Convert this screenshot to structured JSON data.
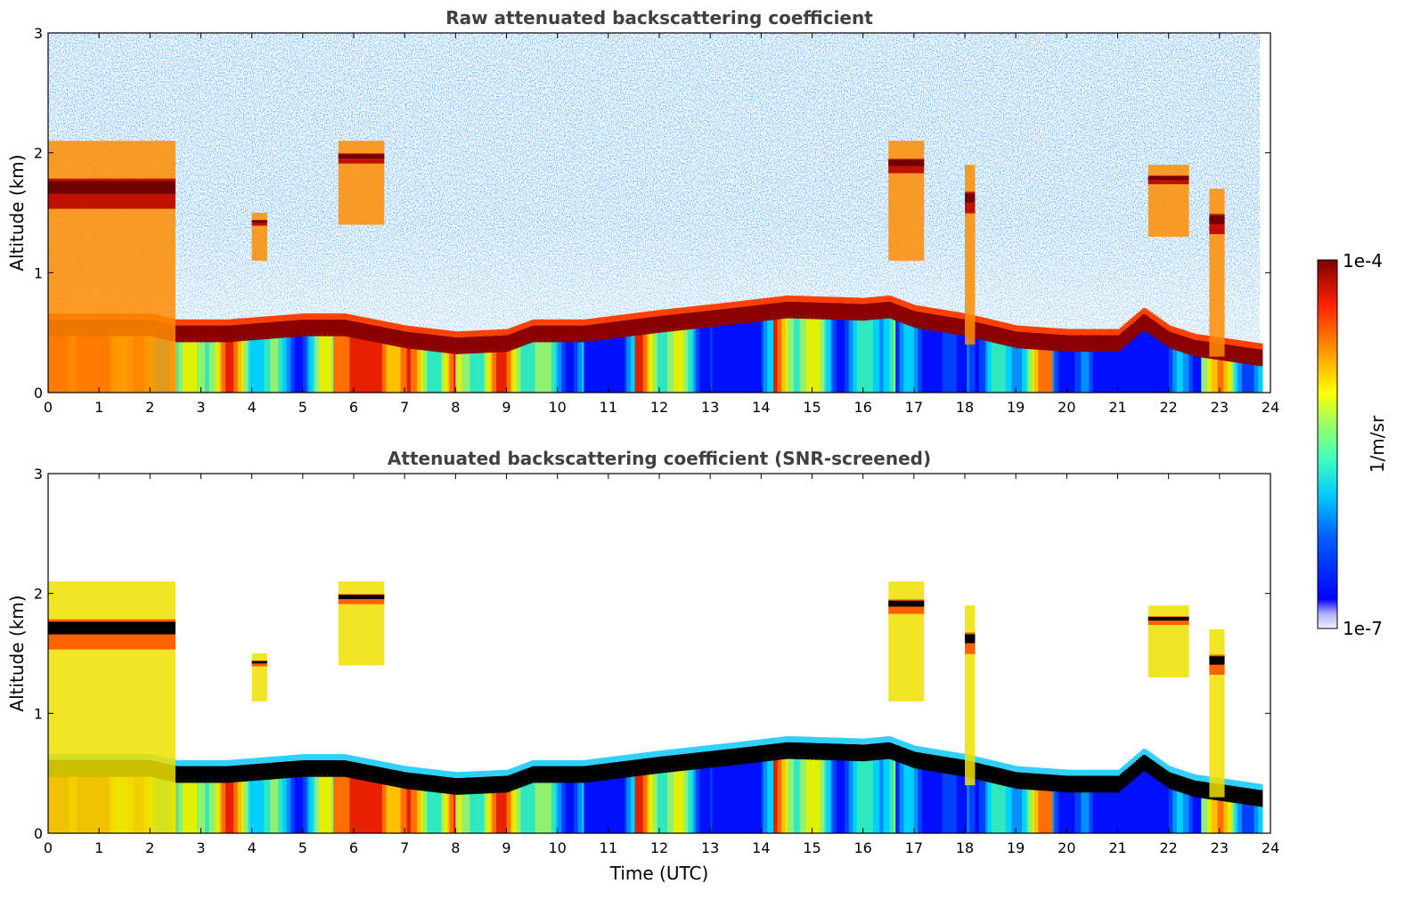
{
  "chart_data": [
    {
      "type": "heatmap",
      "title": "Raw attenuated backscattering coefficient",
      "xlabel": "",
      "ylabel": "Altitude (km)",
      "xlim": [
        0,
        24
      ],
      "ylim": [
        0,
        3
      ],
      "xticks": [
        "0",
        "1",
        "2",
        "3",
        "4",
        "5",
        "6",
        "7",
        "8",
        "9",
        "10",
        "11",
        "12",
        "13",
        "14",
        "15",
        "16",
        "17",
        "18",
        "19",
        "20",
        "21",
        "22",
        "23",
        "24"
      ],
      "yticks": [
        "0",
        "1",
        "2",
        "3"
      ],
      "data_end_time": 23.8,
      "boundary_layer_top_km": {
        "time": [
          0,
          0.5,
          1.0,
          2.0,
          2.5,
          3.5,
          5.0,
          5.8,
          7.0,
          8.0,
          9.0,
          9.5,
          10.5,
          12.0,
          13.5,
          14.5,
          16.0,
          16.5,
          17.0,
          18.0,
          19.0,
          20.0,
          21.0,
          21.5,
          22.0,
          22.5,
          23.0,
          23.8
        ],
        "altitude": [
          0.55,
          0.55,
          0.55,
          0.55,
          0.5,
          0.5,
          0.55,
          0.55,
          0.45,
          0.4,
          0.42,
          0.5,
          0.5,
          0.58,
          0.65,
          0.7,
          0.68,
          0.7,
          0.62,
          0.55,
          0.45,
          0.42,
          0.42,
          0.6,
          0.45,
          0.38,
          0.35,
          0.3
        ]
      },
      "clouds": [
        {
          "t_start": 0.0,
          "t_end": 2.5,
          "base_km": 0.0,
          "top_km": 2.1
        },
        {
          "t_start": 4.0,
          "t_end": 4.3,
          "base_km": 1.1,
          "top_km": 1.5
        },
        {
          "t_start": 5.7,
          "t_end": 6.6,
          "base_km": 1.4,
          "top_km": 2.1
        },
        {
          "t_start": 16.5,
          "t_end": 17.2,
          "base_km": 1.1,
          "top_km": 2.1
        },
        {
          "t_start": 18.0,
          "t_end": 18.2,
          "base_km": 0.4,
          "top_km": 1.9
        },
        {
          "t_start": 21.6,
          "t_end": 22.4,
          "base_km": 1.3,
          "top_km": 1.9
        },
        {
          "t_start": 22.8,
          "t_end": 23.1,
          "base_km": 0.3,
          "top_km": 1.7
        }
      ]
    },
    {
      "type": "heatmap",
      "title": "Attenuated backscattering coefficient (SNR-screened)",
      "xlabel": "Time (UTC)",
      "ylabel": "Altitude (km)",
      "xlim": [
        0,
        24
      ],
      "ylim": [
        0,
        3
      ],
      "xticks": [
        "0",
        "1",
        "2",
        "3",
        "4",
        "5",
        "6",
        "7",
        "8",
        "9",
        "10",
        "11",
        "12",
        "13",
        "14",
        "15",
        "16",
        "17",
        "18",
        "19",
        "20",
        "21",
        "22",
        "23",
        "24"
      ],
      "yticks": [
        "0",
        "1",
        "2",
        "3"
      ],
      "data_end_time": 23.8
    }
  ],
  "colorbar": {
    "label": "1/m/sr",
    "max_label": "1e-4",
    "min_label": "1e-7",
    "scale": "log",
    "colormap": "jet",
    "colors": [
      "#e8e8f8",
      "#0000ff",
      "#00a0ff",
      "#00e0e0",
      "#7fff7f",
      "#ffff00",
      "#ffa000",
      "#ff3000",
      "#800000"
    ]
  }
}
